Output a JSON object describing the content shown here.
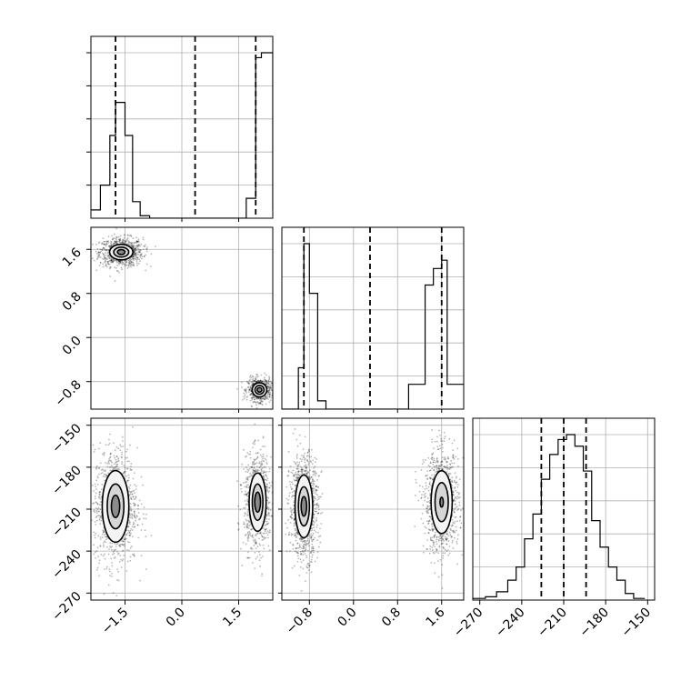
{
  "chart_data": {
    "type": "corner",
    "grid": true,
    "parameters": [
      {
        "name": "",
        "range": [
          -2.4,
          2.4
        ],
        "ticks": [
          -1.5,
          0.0,
          1.5
        ],
        "tick_labels": [
          "−1.5",
          "0.0",
          "1.5"
        ]
      },
      {
        "name": "",
        "range": [
          -1.3,
          2.0
        ],
        "ticks": [
          -0.8,
          0.0,
          0.8,
          1.6
        ],
        "tick_labels": [
          "−0.8",
          "0.0",
          "0.8",
          "1.6"
        ]
      },
      {
        "name": "",
        "range": [
          -275,
          -145
        ],
        "ticks": [
          -270,
          -240,
          -210,
          -180,
          -150
        ],
        "tick_labels": [
          "−270",
          "−240",
          "−210",
          "−180",
          "−150"
        ]
      }
    ],
    "panels": [
      {
        "type": "hist",
        "param": 0,
        "bin_edges": [
          -2.4,
          -2.15,
          -1.9,
          -1.75,
          -1.5,
          -1.3,
          -1.1,
          -0.85,
          -0.6,
          1.7,
          1.95,
          2.1,
          2.4
        ],
        "counts": [
          0.05,
          0.2,
          0.5,
          0.7,
          0.5,
          0.1,
          0.015,
          0,
          0,
          0.12,
          0.97,
          1.0,
          0.05
        ],
        "quantiles": [
          -1.75,
          0.35,
          1.95
        ]
      },
      {
        "type": "hist",
        "param": 1,
        "bin_edges": [
          -1.3,
          -1.0,
          -0.9,
          -0.8,
          -0.65,
          -0.5,
          1.0,
          1.3,
          1.45,
          1.6,
          1.7,
          2.0
        ],
        "counts": [
          0,
          0.25,
          1.0,
          0.7,
          0.05,
          0,
          0.15,
          0.75,
          0.85,
          0.9,
          0.15
        ],
        "quantiles": [
          -0.9,
          0.3,
          1.6
        ]
      },
      {
        "type": "hist",
        "param": 2,
        "bin_edges": [
          -275,
          -266,
          -258,
          -250,
          -244,
          -238,
          -232,
          -226,
          -220,
          -214,
          -208,
          -202,
          -196,
          -190,
          -184,
          -178,
          -172,
          -166,
          -160,
          -152
        ],
        "counts": [
          0.01,
          0.02,
          0.05,
          0.12,
          0.2,
          0.37,
          0.52,
          0.73,
          0.88,
          0.97,
          1.0,
          0.93,
          0.78,
          0.48,
          0.32,
          0.2,
          0.12,
          0.04,
          0.01
        ],
        "quantiles": [
          -226,
          -210,
          -194
        ]
      },
      {
        "type": "density2d",
        "x_param": 0,
        "y_param": 1,
        "modes": [
          {
            "mean": [
              -1.6,
              1.55
            ],
            "sd": [
              0.22,
              0.1
            ],
            "points": 850,
            "contour_scales": [
              1.4,
              0.9,
              0.45
            ]
          },
          {
            "mean": [
              2.05,
              -0.95
            ],
            "sd": [
              0.12,
              0.08
            ],
            "points": 650,
            "contour_scales": [
              1.6,
              1.0,
              0.5
            ]
          }
        ]
      },
      {
        "type": "density2d",
        "x_param": 0,
        "y_param": 2,
        "modes": [
          {
            "mean": [
              -1.75,
              -208
            ],
            "sd": [
              0.22,
              16
            ],
            "points": 1000,
            "contour_scales": [
              1.6,
              1.0,
              0.5
            ]
          },
          {
            "mean": [
              2.0,
              -205
            ],
            "sd": [
              0.14,
              13
            ],
            "points": 900,
            "contour_scales": [
              1.6,
              1.0,
              0.55
            ]
          }
        ]
      },
      {
        "type": "density2d",
        "x_param": 1,
        "y_param": 2,
        "modes": [
          {
            "mean": [
              -0.9,
              -208
            ],
            "sd": [
              0.1,
              14
            ],
            "points": 1000,
            "contour_scales": [
              1.6,
              1.0,
              0.5
            ]
          },
          {
            "mean": [
              1.6,
              -205
            ],
            "sd": [
              0.12,
              14
            ],
            "points": 1000,
            "contour_scales": [
              1.6,
              1.0,
              0.25
            ]
          }
        ]
      }
    ]
  }
}
